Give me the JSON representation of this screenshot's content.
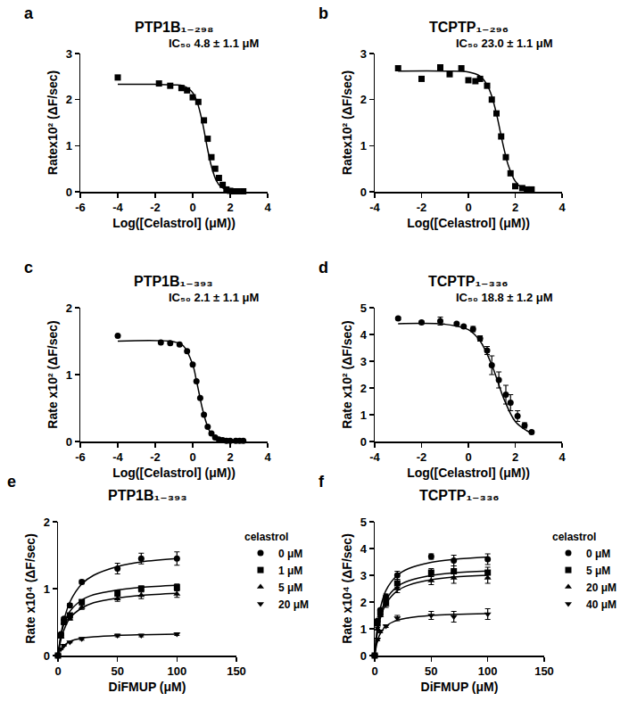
{
  "chart_data": [
    {
      "type": "scatter",
      "label": "a",
      "title": "PTP1B₁₋₂₉₈",
      "annotation": "IC₅₀ 4.8 ± 1.1 μM",
      "x_label": "Log([Celastrol] (μM))",
      "y_label": "Ratex10² (ΔF/sec)",
      "xlim": [
        -6,
        4
      ],
      "xticks": [
        -6,
        -4,
        -2,
        0,
        2,
        4
      ],
      "ylim": [
        0,
        3
      ],
      "yticks": [
        0,
        1,
        2,
        3
      ],
      "grid": false,
      "series": [
        {
          "marker": "square",
          "color": "#000000",
          "x": [
            -4,
            -1.8,
            -1.2,
            -0.6,
            -0.3,
            0,
            0.3,
            0.6,
            0.8,
            1.0,
            1.2,
            1.4,
            1.6,
            1.8,
            2.0,
            2.2,
            2.4,
            2.7
          ],
          "values": [
            2.48,
            2.35,
            2.3,
            2.25,
            2.2,
            2.05,
            1.95,
            1.55,
            1.15,
            0.75,
            0.5,
            0.3,
            0.15,
            0.05,
            0.02,
            0.01,
            0.01,
            0.01
          ],
          "fit": {
            "x": [
              -4,
              -2,
              -1,
              -0.5,
              0,
              0.25,
              0.5,
              0.68,
              0.8,
              1.0,
              1.25,
              1.5,
              2,
              2.7
            ],
            "values": [
              2.33,
              2.33,
              2.32,
              2.3,
              2.15,
              1.93,
              1.54,
              1.17,
              0.91,
              0.55,
              0.25,
              0.11,
              0.02,
              0.0
            ]
          }
        }
      ]
    },
    {
      "type": "scatter",
      "label": "b",
      "title": "TCPTP₁₋₂₉₆",
      "annotation": "IC₅₀ 23.0 ± 1.1 μM",
      "x_label": "Log([Celastrol] (μM))",
      "y_label": "Ratex10² (ΔF/sec)",
      "xlim": [
        -4,
        4
      ],
      "xticks": [
        -4,
        -2,
        0,
        2,
        4
      ],
      "ylim": [
        0,
        3
      ],
      "yticks": [
        0,
        1,
        2,
        3
      ],
      "grid": false,
      "series": [
        {
          "marker": "square",
          "color": "#000000",
          "x": [
            -3,
            -2,
            -1.2,
            -0.8,
            -0.3,
            0,
            0.3,
            0.5,
            0.8,
            1.0,
            1.2,
            1.4,
            1.6,
            1.8,
            2.0,
            2.3,
            2.5,
            2.7
          ],
          "values": [
            2.68,
            2.45,
            2.7,
            2.55,
            2.68,
            2.42,
            2.4,
            2.45,
            2.3,
            2.0,
            1.7,
            1.2,
            0.75,
            0.4,
            0.12,
            0.08,
            0.05,
            0.05
          ],
          "fit": {
            "x": [
              -3,
              -1,
              0,
              0.5,
              0.8,
              1.0,
              1.2,
              1.36,
              1.5,
              1.7,
              2.0,
              2.3,
              2.7
            ],
            "values": [
              2.62,
              2.62,
              2.6,
              2.51,
              2.32,
              2.07,
              1.69,
              1.31,
              0.98,
              0.58,
              0.23,
              0.08,
              0.02
            ]
          }
        }
      ]
    },
    {
      "type": "scatter",
      "label": "c",
      "title": "PTP1B₁₋₃₉₃",
      "annotation": "IC₅₀ 2.1 ± 1.1 μM",
      "x_label": "Log([Celastrol] (μM))",
      "y_label": "Rate x10² (ΔF/sec)",
      "xlim": [
        -6,
        4
      ],
      "xticks": [
        -6,
        -4,
        -2,
        0,
        2,
        4
      ],
      "ylim": [
        0,
        2
      ],
      "yticks": [
        0,
        1,
        2
      ],
      "grid": false,
      "series": [
        {
          "marker": "circle",
          "color": "#000000",
          "x": [
            -4,
            -1.7,
            -1.2,
            -0.7,
            -0.3,
            0,
            0.2,
            0.4,
            0.6,
            0.8,
            1.0,
            1.2,
            1.4,
            1.6,
            1.8,
            2.0,
            2.3,
            2.5,
            2.7
          ],
          "values": [
            1.58,
            1.48,
            1.47,
            1.45,
            1.35,
            1.15,
            0.9,
            0.65,
            0.4,
            0.22,
            0.12,
            0.06,
            0.03,
            0.02,
            0.01,
            0.01,
            0.01,
            0.01,
            0.01
          ],
          "fit": {
            "x": [
              -4,
              -1,
              -0.5,
              0,
              0.2,
              0.32,
              0.5,
              0.75,
              1.0,
              1.5,
              2.7
            ],
            "values": [
              1.5,
              1.49,
              1.43,
              1.15,
              0.91,
              0.75,
              0.51,
              0.26,
              0.11,
              0.02,
              0.0
            ]
          }
        }
      ]
    },
    {
      "type": "scatter",
      "label": "d",
      "title": "TCPTP₁₋₃₃₆",
      "annotation": "IC₅₀ 18.8 ± 1.2 μM",
      "x_label": "Log([Celastrol] (μM))",
      "y_label": "Rate x10² (ΔF/sec)",
      "xlim": [
        -4,
        4
      ],
      "xticks": [
        -4,
        -2,
        0,
        2,
        4
      ],
      "ylim": [
        0,
        5
      ],
      "yticks": [
        0,
        1,
        2,
        3,
        4,
        5
      ],
      "grid": false,
      "series": [
        {
          "marker": "circle",
          "color": "#000000",
          "x": [
            -3,
            -2,
            -1.2,
            -0.5,
            -0.2,
            0.2,
            0.5,
            0.8,
            1.0,
            1.3,
            1.6,
            1.8,
            2.1,
            2.4,
            2.7
          ],
          "values": [
            4.6,
            4.45,
            4.5,
            4.4,
            4.3,
            4.2,
            3.85,
            3.4,
            2.85,
            2.3,
            1.75,
            1.45,
            0.95,
            0.6,
            0.35
          ],
          "errors": [
            0.05,
            0.05,
            0.15,
            0.05,
            0.05,
            0.1,
            0.1,
            0.15,
            0.35,
            0.3,
            0.35,
            0.3,
            0.2,
            0.1,
            0.05
          ],
          "fit": {
            "x": [
              -3,
              -1,
              0,
              0.5,
              1.0,
              1.27,
              1.5,
              2.0,
              2.5,
              2.8
            ],
            "values": [
              4.4,
              4.38,
              4.18,
              3.76,
              2.86,
              2.2,
              1.63,
              0.75,
              0.4,
              0.28
            ]
          }
        }
      ]
    },
    {
      "type": "scatter",
      "label": "e",
      "title": "PTP1B₁₋₃₉₃",
      "x_label": "DiFMUP (μM)",
      "y_label": "Rate x10⁴ (ΔF/sec)",
      "xlim": [
        0,
        150
      ],
      "xticks": [
        0,
        50,
        100,
        150
      ],
      "ylim": [
        0,
        2
      ],
      "yticks": [
        0,
        1,
        2
      ],
      "grid": false,
      "legend": "right",
      "legend_title": "celastrol",
      "series": [
        {
          "name": "0 μM",
          "marker": "circle",
          "color": "#000000",
          "x": [
            0,
            2.5,
            5,
            10,
            20,
            50,
            70,
            100
          ],
          "values": [
            0,
            0.32,
            0.55,
            0.75,
            1.1,
            1.3,
            1.45,
            1.45
          ],
          "errors": [
            0,
            0.02,
            0.02,
            0.03,
            0.03,
            0.08,
            0.08,
            0.1
          ],
          "fit": {
            "x": [
              0,
              2.5,
              5,
              10,
              20,
              30,
              50,
              70,
              100
            ],
            "values": [
              0,
              0.32,
              0.53,
              0.8,
              1.07,
              1.2,
              1.33,
              1.4,
              1.45
            ]
          }
        },
        {
          "name": "1 μM",
          "marker": "square",
          "color": "#000000",
          "x": [
            0,
            2.5,
            5,
            10,
            20,
            50,
            70,
            100
          ],
          "values": [
            0,
            0.3,
            0.5,
            0.6,
            0.8,
            0.93,
            1.0,
            1.02
          ],
          "errors": [
            0,
            0.02,
            0.02,
            0.02,
            0.03,
            0.04,
            0.04,
            0.05
          ],
          "fit": {
            "x": [
              0,
              2.5,
              5,
              10,
              20,
              30,
              50,
              70,
              100
            ],
            "values": [
              0,
              0.29,
              0.47,
              0.66,
              0.83,
              0.91,
              0.98,
              1.02,
              1.05
            ]
          }
        },
        {
          "name": "5 μM",
          "marker": "triangle-up",
          "color": "#000000",
          "x": [
            0,
            2.5,
            5,
            10,
            20,
            50,
            70,
            100
          ],
          "values": [
            0,
            0.28,
            0.5,
            0.55,
            0.72,
            0.85,
            0.9,
            0.92
          ],
          "errors": [
            0,
            0.02,
            0.02,
            0.02,
            0.03,
            0.04,
            0.05,
            0.05
          ],
          "fit": {
            "x": [
              0,
              2.5,
              5,
              10,
              20,
              30,
              50,
              70,
              100
            ],
            "values": [
              0,
              0.24,
              0.38,
              0.56,
              0.71,
              0.79,
              0.86,
              0.9,
              0.93
            ]
          }
        },
        {
          "name": "20 μM",
          "marker": "triangle-down",
          "color": "#000000",
          "x": [
            0,
            2.5,
            5,
            10,
            20,
            50,
            70,
            100
          ],
          "values": [
            0,
            0.1,
            0.15,
            0.2,
            0.25,
            0.3,
            0.3,
            0.32
          ],
          "errors": [
            0,
            0.01,
            0.01,
            0.01,
            0.02,
            0.02,
            0.02,
            0.02
          ],
          "fit": {
            "x": [
              0,
              2.5,
              5,
              10,
              20,
              30,
              50,
              70,
              100
            ],
            "values": [
              0,
              0.1,
              0.15,
              0.21,
              0.26,
              0.28,
              0.3,
              0.31,
              0.32
            ]
          }
        }
      ]
    },
    {
      "type": "scatter",
      "label": "f",
      "title": "TCPTP₁₋₃₃₆",
      "x_label": "DiFMUP (μM)",
      "y_label": "Rate x10⁴ (ΔF/sec)",
      "xlim": [
        0,
        150
      ],
      "xticks": [
        0,
        50,
        100,
        150
      ],
      "ylim": [
        0,
        5
      ],
      "yticks": [
        0,
        1,
        2,
        3,
        4,
        5
      ],
      "grid": false,
      "legend": "right",
      "legend_title": "celastrol",
      "series": [
        {
          "name": "0 μM",
          "marker": "circle",
          "color": "#000000",
          "x": [
            0,
            2.5,
            5,
            10,
            20,
            50,
            70,
            100
          ],
          "values": [
            0,
            1.3,
            1.7,
            2.2,
            3.0,
            3.7,
            3.55,
            3.6
          ],
          "errors": [
            0,
            0.05,
            0.05,
            0.1,
            0.15,
            0.1,
            0.2,
            0.2
          ],
          "fit": {
            "x": [
              0,
              2.5,
              5,
              10,
              20,
              30,
              50,
              70,
              100
            ],
            "values": [
              0,
              1.15,
              1.77,
              2.44,
              3.0,
              3.25,
              3.48,
              3.59,
              3.68
            ]
          }
        },
        {
          "name": "5 μM",
          "marker": "square",
          "color": "#000000",
          "x": [
            0,
            2.5,
            5,
            10,
            20,
            50,
            70,
            100
          ],
          "values": [
            0,
            1.2,
            1.6,
            2.0,
            2.7,
            3.1,
            3.15,
            3.1
          ],
          "errors": [
            0,
            0.05,
            0.05,
            0.1,
            0.15,
            0.15,
            0.2,
            0.2
          ],
          "fit": {
            "x": [
              0,
              2.5,
              5,
              10,
              20,
              30,
              50,
              70,
              100
            ],
            "values": [
              0,
              0.99,
              1.52,
              2.09,
              2.58,
              2.79,
              2.99,
              3.09,
              3.16
            ]
          }
        },
        {
          "name": "20 μM",
          "marker": "triangle-up",
          "color": "#000000",
          "x": [
            0,
            2.5,
            5,
            10,
            20,
            50,
            70,
            100
          ],
          "values": [
            0,
            1.0,
            1.5,
            1.9,
            2.5,
            2.8,
            2.9,
            2.9
          ],
          "errors": [
            0,
            0.05,
            0.05,
            0.1,
            0.15,
            0.15,
            0.2,
            0.2
          ],
          "fit": {
            "x": [
              0,
              2.5,
              5,
              10,
              20,
              30,
              50,
              70,
              100
            ],
            "values": [
              0,
              0.89,
              1.39,
              1.94,
              2.42,
              2.63,
              2.83,
              2.93,
              3.0
            ]
          }
        },
        {
          "name": "40 μM",
          "marker": "triangle-down",
          "color": "#000000",
          "x": [
            0,
            2.5,
            5,
            10,
            20,
            50,
            70,
            100
          ],
          "values": [
            0,
            0.6,
            0.9,
            1.1,
            1.4,
            1.5,
            1.45,
            1.55
          ],
          "errors": [
            0,
            0.05,
            0.05,
            0.05,
            0.1,
            0.15,
            0.2,
            0.2
          ],
          "fit": {
            "x": [
              0,
              2.5,
              5,
              10,
              20,
              30,
              50,
              70,
              100
            ],
            "values": [
              0,
              0.55,
              0.83,
              1.1,
              1.32,
              1.41,
              1.5,
              1.54,
              1.57
            ]
          }
        }
      ]
    }
  ]
}
